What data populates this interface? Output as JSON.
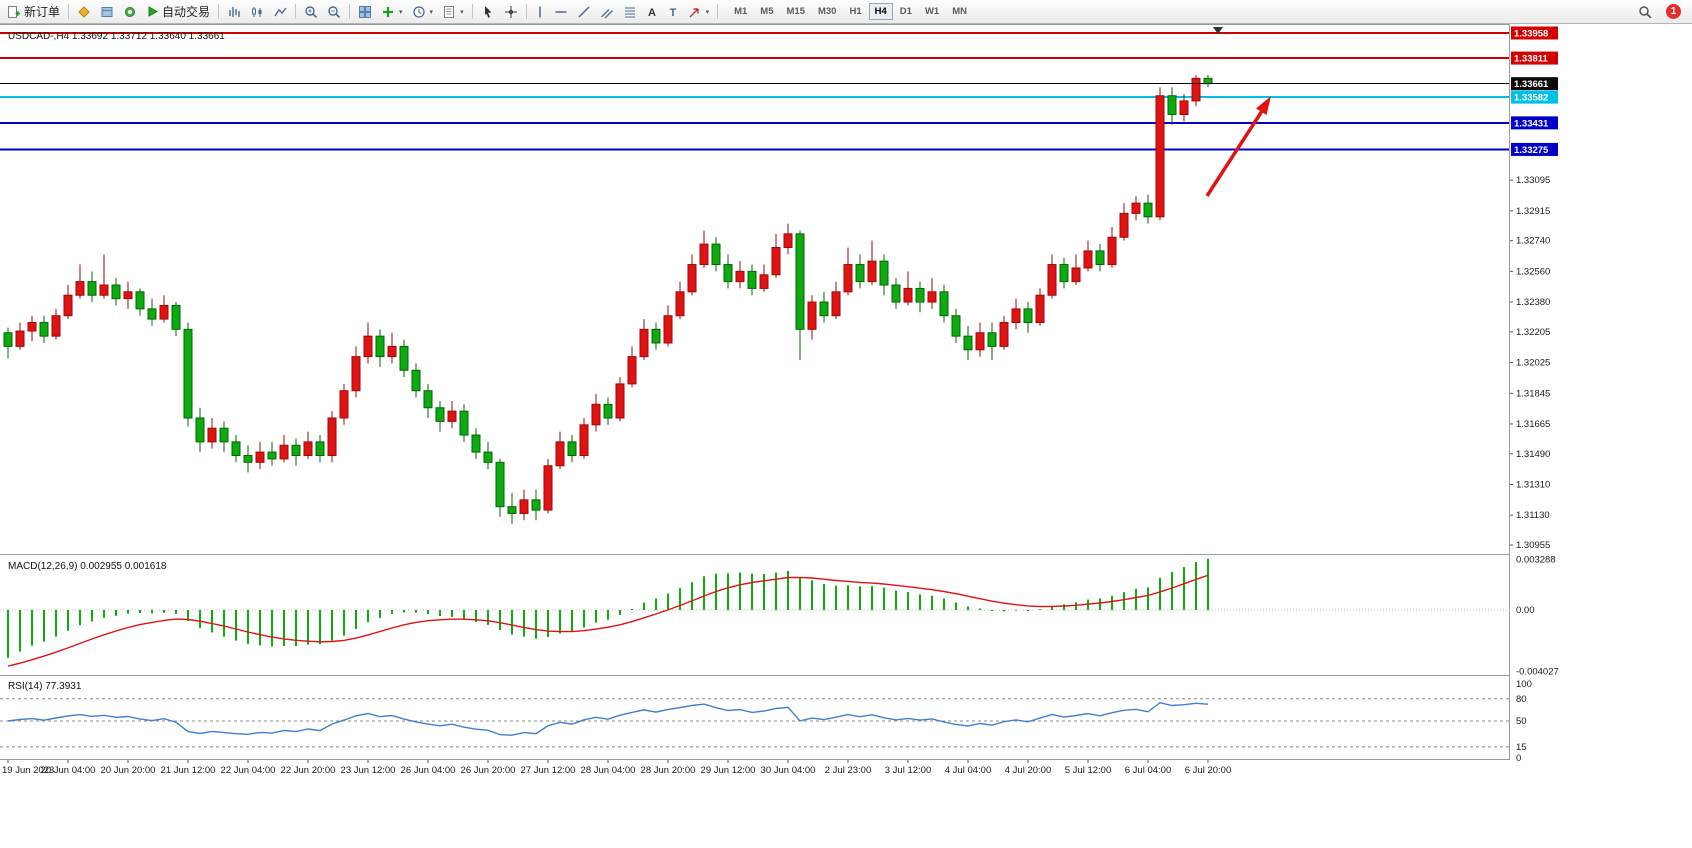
{
  "toolbar": {
    "new_order": "新订单",
    "auto_trading": "自动交易",
    "timeframes": [
      "M1",
      "M5",
      "M15",
      "M30",
      "H1",
      "H4",
      "D1",
      "W1",
      "MN"
    ],
    "active_timeframe": "H4",
    "notification_count": "1"
  },
  "price_chart": {
    "title": "USDCAD-,H4  1.33692 1.33712 1.33640 1.33661",
    "axis_ticks": [
      "1.33095",
      "1.32915",
      "1.32740",
      "1.32560",
      "1.32380",
      "1.32205",
      "1.32025",
      "1.31845",
      "1.31665",
      "1.31490",
      "1.31310",
      "1.31130",
      "1.30955"
    ],
    "levels": [
      {
        "label": "1.33958",
        "price": 1.33958,
        "color": "#d40000",
        "width": 2
      },
      {
        "label": "1.33811",
        "price": 1.33811,
        "color": "#d40000",
        "width": 2
      },
      {
        "label": "1.33582",
        "price": 1.33582,
        "color": "#00c0e8",
        "width": 2
      },
      {
        "label": "1.33431",
        "price": 1.33431,
        "color": "#0000c8",
        "width": 2
      },
      {
        "label": "1.33275",
        "price": 1.33275,
        "color": "#0000c8",
        "width": 2
      }
    ],
    "current_price": {
      "label": "1.33661",
      "price": 1.33661,
      "color": "#0a0a0a"
    }
  },
  "macd_panel": {
    "label": "MACD(12,26,9) 0.002955 0.001618",
    "axis": [
      "0.003288",
      "0.00",
      "-0.004027"
    ]
  },
  "rsi_panel": {
    "label": "RSI(14) 77.3931",
    "axis": [
      "100",
      "80",
      "50",
      "15",
      "0"
    ],
    "levels": [
      80,
      50,
      15
    ]
  },
  "time_axis": [
    "19 Jun 2023",
    "20 Jun 04:00",
    "20 Jun 20:00",
    "21 Jun 12:00",
    "22 Jun 04:00",
    "22 Jun 20:00",
    "23 Jun 12:00",
    "26 Jun 04:00",
    "26 Jun 20:00",
    "27 Jun 12:00",
    "28 Jun 04:00",
    "28 Jun 20:00",
    "29 Jun 12:00",
    "30 Jun 04:00",
    "2 Jul 23:00",
    "3 Jul 12:00",
    "4 Jul 04:00",
    "4 Jul 20:00",
    "5 Jul 12:00",
    "6 Jul 04:00",
    "6 Jul 20:00"
  ],
  "colors": {
    "bull": "#e11212",
    "bull_stroke": "#9c0a0a",
    "bear": "#0cab10",
    "bear_stroke": "#046406",
    "macd_hist": "#0cab10",
    "macd_signal": "#e11212",
    "rsi": "#3f7fd4",
    "arrow": "#e01212"
  },
  "chart_data": {
    "type": "candlestick",
    "symbol": "USDCAD",
    "timeframe": "H4",
    "ohlc_current": {
      "open": 1.33692,
      "high": 1.33712,
      "low": 1.3364,
      "close": 1.33661
    },
    "indicators": [
      {
        "name": "MACD",
        "params": [
          12,
          26,
          9
        ],
        "values": [
          0.002955,
          0.001618
        ]
      },
      {
        "name": "RSI",
        "params": [
          14
        ],
        "value": 77.3931
      }
    ],
    "candles": [
      [
        1.322,
        1.3223,
        1.3205,
        1.3212
      ],
      [
        1.3212,
        1.3226,
        1.321,
        1.3221
      ],
      [
        1.3221,
        1.323,
        1.3215,
        1.3226
      ],
      [
        1.3226,
        1.323,
        1.3214,
        1.3218
      ],
      [
        1.3218,
        1.3234,
        1.3216,
        1.323
      ],
      [
        1.323,
        1.3248,
        1.3228,
        1.3242
      ],
      [
        1.3242,
        1.326,
        1.324,
        1.325
      ],
      [
        1.325,
        1.3256,
        1.3238,
        1.3242
      ],
      [
        1.3242,
        1.3266,
        1.324,
        1.3248
      ],
      [
        1.3248,
        1.3252,
        1.3236,
        1.324
      ],
      [
        1.324,
        1.325,
        1.3234,
        1.3244
      ],
      [
        1.3244,
        1.3246,
        1.323,
        1.3234
      ],
      [
        1.3234,
        1.324,
        1.3224,
        1.3228
      ],
      [
        1.3228,
        1.3242,
        1.3226,
        1.3236
      ],
      [
        1.3236,
        1.3238,
        1.3218,
        1.3222
      ],
      [
        1.3222,
        1.3226,
        1.3165,
        1.317
      ],
      [
        1.317,
        1.3176,
        1.315,
        1.3156
      ],
      [
        1.3156,
        1.317,
        1.3152,
        1.3164
      ],
      [
        1.3164,
        1.3168,
        1.315,
        1.3156
      ],
      [
        1.3156,
        1.316,
        1.3144,
        1.3148
      ],
      [
        1.3148,
        1.3154,
        1.3138,
        1.3144
      ],
      [
        1.3144,
        1.3156,
        1.314,
        1.315
      ],
      [
        1.315,
        1.3156,
        1.3142,
        1.3146
      ],
      [
        1.3146,
        1.316,
        1.3144,
        1.3154
      ],
      [
        1.3154,
        1.3158,
        1.3142,
        1.3148
      ],
      [
        1.3148,
        1.3162,
        1.3146,
        1.3156
      ],
      [
        1.3156,
        1.316,
        1.3144,
        1.3148
      ],
      [
        1.3148,
        1.3174,
        1.3144,
        1.317
      ],
      [
        1.317,
        1.319,
        1.3166,
        1.3186
      ],
      [
        1.3186,
        1.3212,
        1.3182,
        1.3206
      ],
      [
        1.3206,
        1.3226,
        1.3202,
        1.3218
      ],
      [
        1.3218,
        1.3222,
        1.32,
        1.3206
      ],
      [
        1.3206,
        1.322,
        1.3202,
        1.3212
      ],
      [
        1.3212,
        1.3216,
        1.3194,
        1.3198
      ],
      [
        1.3198,
        1.3202,
        1.3182,
        1.3186
      ],
      [
        1.3186,
        1.319,
        1.317,
        1.3176
      ],
      [
        1.3176,
        1.318,
        1.3162,
        1.3168
      ],
      [
        1.3168,
        1.318,
        1.3164,
        1.3174
      ],
      [
        1.3174,
        1.3178,
        1.3156,
        1.316
      ],
      [
        1.316,
        1.3164,
        1.3146,
        1.315
      ],
      [
        1.315,
        1.3156,
        1.314,
        1.3144
      ],
      [
        1.3144,
        1.3146,
        1.3112,
        1.3118
      ],
      [
        1.3118,
        1.3126,
        1.3108,
        1.3114
      ],
      [
        1.3114,
        1.3128,
        1.311,
        1.3122
      ],
      [
        1.3122,
        1.3128,
        1.311,
        1.3116
      ],
      [
        1.3116,
        1.3146,
        1.3114,
        1.3142
      ],
      [
        1.3142,
        1.3162,
        1.314,
        1.3156
      ],
      [
        1.3156,
        1.316,
        1.3144,
        1.3148
      ],
      [
        1.3148,
        1.317,
        1.3146,
        1.3166
      ],
      [
        1.3166,
        1.3184,
        1.3162,
        1.3178
      ],
      [
        1.3178,
        1.3182,
        1.3166,
        1.317
      ],
      [
        1.317,
        1.3194,
        1.3168,
        1.319
      ],
      [
        1.319,
        1.3212,
        1.3188,
        1.3206
      ],
      [
        1.3206,
        1.3228,
        1.3204,
        1.3222
      ],
      [
        1.3222,
        1.3226,
        1.321,
        1.3214
      ],
      [
        1.3214,
        1.3236,
        1.3212,
        1.323
      ],
      [
        1.323,
        1.325,
        1.3228,
        1.3244
      ],
      [
        1.3244,
        1.3266,
        1.3242,
        1.326
      ],
      [
        1.326,
        1.328,
        1.3258,
        1.3272
      ],
      [
        1.3272,
        1.3276,
        1.3256,
        1.326
      ],
      [
        1.326,
        1.3266,
        1.3246,
        1.325
      ],
      [
        1.325,
        1.3262,
        1.3246,
        1.3256
      ],
      [
        1.3256,
        1.326,
        1.3242,
        1.3246
      ],
      [
        1.3246,
        1.326,
        1.3244,
        1.3254
      ],
      [
        1.3254,
        1.3278,
        1.3252,
        1.327
      ],
      [
        1.327,
        1.3284,
        1.3266,
        1.3278
      ],
      [
        1.3278,
        1.328,
        1.3204,
        1.3222
      ],
      [
        1.3222,
        1.3242,
        1.3216,
        1.3238
      ],
      [
        1.3238,
        1.3244,
        1.3226,
        1.323
      ],
      [
        1.323,
        1.325,
        1.3228,
        1.3244
      ],
      [
        1.3244,
        1.327,
        1.3242,
        1.326
      ],
      [
        1.326,
        1.3266,
        1.3246,
        1.325
      ],
      [
        1.325,
        1.3274,
        1.3248,
        1.3262
      ],
      [
        1.3262,
        1.3266,
        1.3242,
        1.3248
      ],
      [
        1.3248,
        1.3252,
        1.3234,
        1.3238
      ],
      [
        1.3238,
        1.3256,
        1.3236,
        1.3246
      ],
      [
        1.3246,
        1.325,
        1.3232,
        1.3238
      ],
      [
        1.3238,
        1.3252,
        1.3234,
        1.3244
      ],
      [
        1.3244,
        1.3248,
        1.3226,
        1.323
      ],
      [
        1.323,
        1.3234,
        1.3214,
        1.3218
      ],
      [
        1.3218,
        1.3224,
        1.3204,
        1.321
      ],
      [
        1.321,
        1.3226,
        1.3206,
        1.322
      ],
      [
        1.322,
        1.3226,
        1.3204,
        1.3212
      ],
      [
        1.3212,
        1.323,
        1.321,
        1.3226
      ],
      [
        1.3226,
        1.324,
        1.3222,
        1.3234
      ],
      [
        1.3234,
        1.3238,
        1.322,
        1.3226
      ],
      [
        1.3226,
        1.3246,
        1.3224,
        1.3242
      ],
      [
        1.3242,
        1.3266,
        1.324,
        1.326
      ],
      [
        1.326,
        1.3264,
        1.3246,
        1.325
      ],
      [
        1.325,
        1.3266,
        1.3248,
        1.3258
      ],
      [
        1.3258,
        1.3274,
        1.3256,
        1.3268
      ],
      [
        1.3268,
        1.3272,
        1.3256,
        1.326
      ],
      [
        1.326,
        1.3282,
        1.3258,
        1.3276
      ],
      [
        1.3276,
        1.3296,
        1.3274,
        1.329
      ],
      [
        1.329,
        1.33,
        1.3286,
        1.3296
      ],
      [
        1.3296,
        1.3301,
        1.3284,
        1.3288
      ],
      [
        1.3288,
        1.3364,
        1.3286,
        1.3359
      ],
      [
        1.3359,
        1.3364,
        1.3342,
        1.3348
      ],
      [
        1.3348,
        1.336,
        1.3344,
        1.3356
      ],
      [
        1.3356,
        1.3371,
        1.3353,
        1.33692
      ],
      [
        1.33692,
        1.33712,
        1.3364,
        1.33661
      ]
    ]
  }
}
